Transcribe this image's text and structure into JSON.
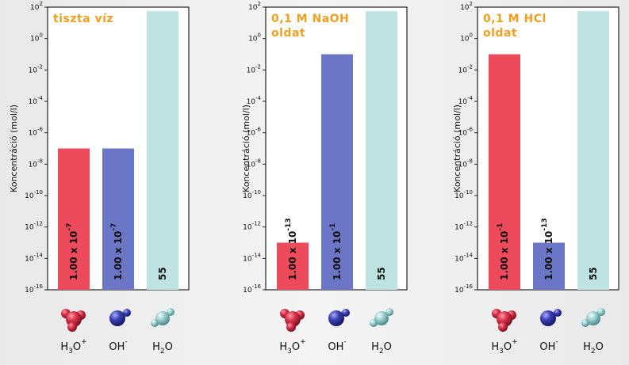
{
  "chart_data": [
    {
      "type": "bar",
      "title": "tiszta víz",
      "ylabel": "Koncentráció (mol/l)",
      "yscale": "log",
      "ylim": [
        1e-16,
        100
      ],
      "yticks": [
        {
          "base": "10",
          "exp": "2"
        },
        {
          "base": "10",
          "exp": "0"
        },
        {
          "base": "10",
          "exp": "-2"
        },
        {
          "base": "10",
          "exp": "-4"
        },
        {
          "base": "10",
          "exp": "-6"
        },
        {
          "base": "10",
          "exp": "-8"
        },
        {
          "base": "10",
          "exp": "-10"
        },
        {
          "base": "10",
          "exp": "-12"
        },
        {
          "base": "10",
          "exp": "-14"
        },
        {
          "base": "10",
          "exp": "-16"
        }
      ],
      "categories": [
        "H3O+",
        "OH-",
        "H2O"
      ],
      "values": [
        1e-07,
        1e-07,
        55
      ],
      "bar_labels": [
        {
          "main": "1.00 x 10",
          "exp": "-7"
        },
        {
          "main": "1.00 x 10",
          "exp": "-7"
        },
        {
          "main": "55",
          "exp": ""
        }
      ],
      "molecule_labels": [
        {
          "base": "H",
          "sub": "3",
          "rest": "O",
          "sup": "+"
        },
        {
          "base": "OH",
          "sub": "",
          "rest": "",
          "sup": "-"
        },
        {
          "base": "H",
          "sub": "2",
          "rest": "O",
          "sup": ""
        }
      ],
      "colors": [
        "#ed4a5c",
        "#6b76c6",
        "#bfe3e3"
      ],
      "grid": false
    },
    {
      "type": "bar",
      "title": "0,1 M NaOH\noldat",
      "ylabel": "Koncentráció (mol/l)",
      "yscale": "log",
      "ylim": [
        1e-16,
        100
      ],
      "yticks": [
        {
          "base": "10",
          "exp": "2"
        },
        {
          "base": "10",
          "exp": "0"
        },
        {
          "base": "10",
          "exp": "-2"
        },
        {
          "base": "10",
          "exp": "-4"
        },
        {
          "base": "10",
          "exp": "-6"
        },
        {
          "base": "10",
          "exp": "-8"
        },
        {
          "base": "10",
          "exp": "-10"
        },
        {
          "base": "10",
          "exp": "-12"
        },
        {
          "base": "10",
          "exp": "-14"
        },
        {
          "base": "10",
          "exp": "-16"
        }
      ],
      "categories": [
        "H3O+",
        "OH-",
        "H2O"
      ],
      "values": [
        1e-13,
        0.1,
        55
      ],
      "bar_labels": [
        {
          "main": "1.00 x 10",
          "exp": "-13"
        },
        {
          "main": "1.00 x 10",
          "exp": "-1"
        },
        {
          "main": "55",
          "exp": ""
        }
      ],
      "molecule_labels": [
        {
          "base": "H",
          "sub": "3",
          "rest": "O",
          "sup": "+"
        },
        {
          "base": "OH",
          "sub": "",
          "rest": "",
          "sup": "-"
        },
        {
          "base": "H",
          "sub": "2",
          "rest": "O",
          "sup": ""
        }
      ],
      "colors": [
        "#ed4a5c",
        "#6b76c6",
        "#bfe3e3"
      ],
      "grid": false
    },
    {
      "type": "bar",
      "title": "0,1 M HCl\noldat",
      "ylabel": "Koncentráció (mol/l)",
      "yscale": "log",
      "ylim": [
        1e-16,
        100
      ],
      "yticks": [
        {
          "base": "10",
          "exp": "2"
        },
        {
          "base": "10",
          "exp": "0"
        },
        {
          "base": "10",
          "exp": "-2"
        },
        {
          "base": "10",
          "exp": "-4"
        },
        {
          "base": "10",
          "exp": "-6"
        },
        {
          "base": "10",
          "exp": "-8"
        },
        {
          "base": "10",
          "exp": "-10"
        },
        {
          "base": "10",
          "exp": "-12"
        },
        {
          "base": "10",
          "exp": "-14"
        },
        {
          "base": "10",
          "exp": "-16"
        }
      ],
      "categories": [
        "H3O+",
        "OH-",
        "H2O"
      ],
      "values": [
        0.1,
        1e-13,
        55
      ],
      "bar_labels": [
        {
          "main": "1.00 x 10",
          "exp": "-1"
        },
        {
          "main": "1.00 x 10",
          "exp": "-13"
        },
        {
          "main": "55",
          "exp": ""
        }
      ],
      "molecule_labels": [
        {
          "base": "H",
          "sub": "3",
          "rest": "O",
          "sup": "+"
        },
        {
          "base": "OH",
          "sub": "",
          "rest": "",
          "sup": "-"
        },
        {
          "base": "H",
          "sub": "2",
          "rest": "O",
          "sup": ""
        }
      ],
      "colors": [
        "#ed4a5c",
        "#6b76c6",
        "#bfe3e3"
      ],
      "grid": false
    }
  ],
  "molecule_icons": [
    "hydronium-icon",
    "hydroxide-icon",
    "water-icon"
  ],
  "colors": {
    "title": "#f0a020",
    "oxygen": "#d8324a",
    "hydroxide_oxygen": "#3a3fb8",
    "water_oxygen": "#9ccfd0",
    "hydrogen": "#eeeeee"
  }
}
